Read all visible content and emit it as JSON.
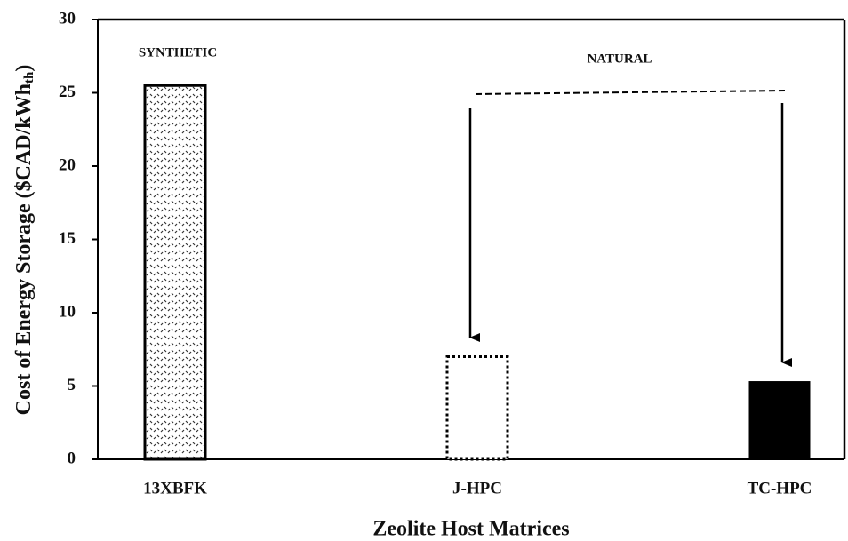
{
  "chart_data": {
    "type": "bar",
    "x_label": "Zeolite Host Matrices",
    "y_label": "Cost of Energy Storage ($CAD/kWh",
    "y_label_subscript": "th",
    "y_label_end": ")",
    "annotations": [
      "SYNTHETIC",
      "NATURAL"
    ],
    "categories": [
      "13XBFK",
      "J-HPC",
      "TC-HPC"
    ],
    "values": [
      25.5,
      7,
      5.3
    ],
    "ylim": [
      0,
      30
    ],
    "yticks": [
      0,
      5,
      10,
      15,
      20,
      25,
      30
    ]
  }
}
